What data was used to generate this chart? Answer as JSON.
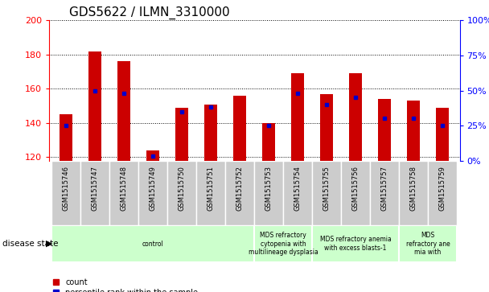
{
  "title": "GDS5622 / ILMN_3310000",
  "samples": [
    "GSM1515746",
    "GSM1515747",
    "GSM1515748",
    "GSM1515749",
    "GSM1515750",
    "GSM1515751",
    "GSM1515752",
    "GSM1515753",
    "GSM1515754",
    "GSM1515755",
    "GSM1515756",
    "GSM1515757",
    "GSM1515758",
    "GSM1515759"
  ],
  "counts": [
    145,
    182,
    176,
    124,
    149,
    151,
    156,
    140,
    169,
    157,
    169,
    154,
    153,
    149
  ],
  "percentiles": [
    25,
    50,
    48,
    3,
    35,
    38,
    null,
    25,
    48,
    40,
    45,
    30,
    30,
    25
  ],
  "ylim_left": [
    118,
    200
  ],
  "ylim_right": [
    0,
    100
  ],
  "yticks_left": [
    120,
    140,
    160,
    180,
    200
  ],
  "yticks_right": [
    0,
    25,
    50,
    75,
    100
  ],
  "bar_color": "#cc0000",
  "dot_color": "#0000cc",
  "bar_bottom": 118,
  "disease_groups": [
    {
      "label": "control",
      "start": 0,
      "end": 7,
      "color": "#ccffcc"
    },
    {
      "label": "MDS refractory\ncytopenia with\nmultilineage dysplasia",
      "start": 7,
      "end": 9,
      "color": "#ccffcc"
    },
    {
      "label": "MDS refractory anemia\nwith excess blasts-1",
      "start": 9,
      "end": 12,
      "color": "#ccffcc"
    },
    {
      "label": "MDS\nrefractory ane\nmia with",
      "start": 12,
      "end": 14,
      "color": "#ccffcc"
    }
  ],
  "background_color": "#ffffff",
  "tick_area_color": "#cccccc",
  "title_fontsize": 11,
  "bar_width": 0.45,
  "label_fontsize": 6,
  "axis_fontsize": 8
}
